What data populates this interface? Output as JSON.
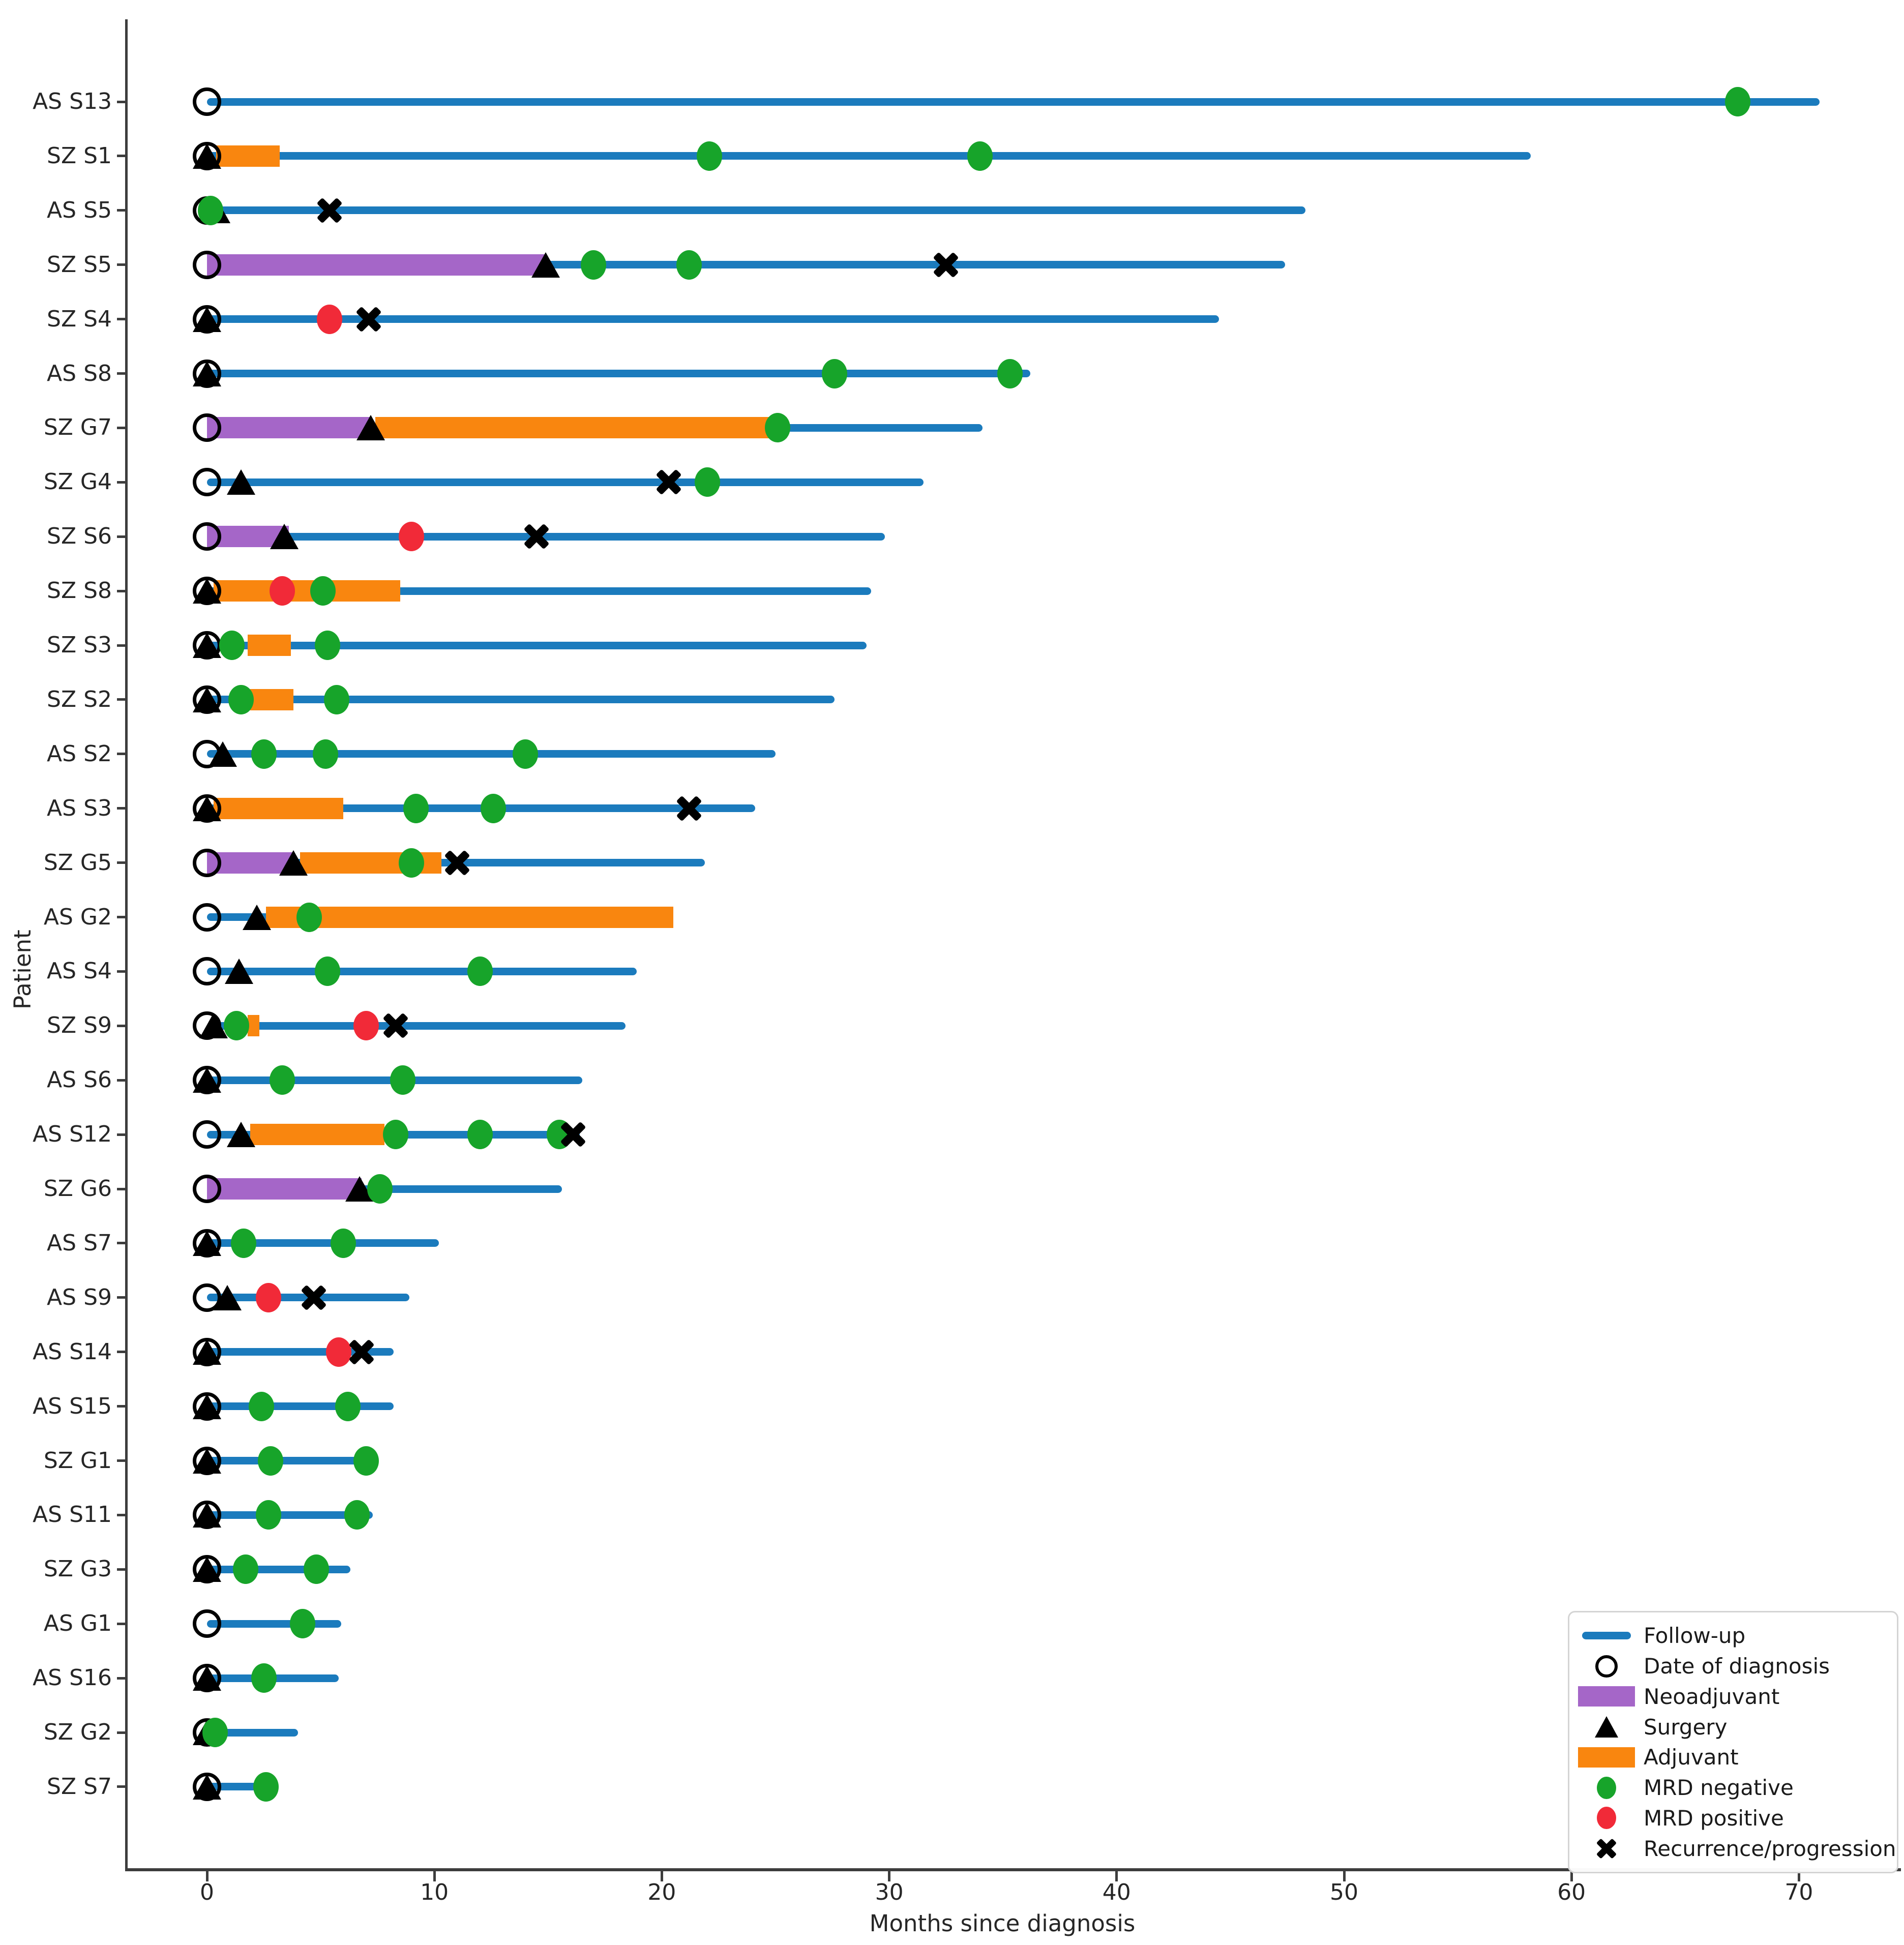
{
  "figure": {
    "xlabel": "Months since diagnosis",
    "ylabel": "Patient"
  },
  "colors": {
    "follow_up": "#1b7bbd",
    "neoadjuvant": "#a566c8",
    "adjuvant": "#f9860f",
    "mrd_negative": "#17a42a",
    "mrd_positive": "#f12a38",
    "marker_black": "#000000",
    "axis": "#3d3d3d",
    "text": "#262626"
  },
  "legend": {
    "items": [
      {
        "label": "Follow-up",
        "type": "follow_up"
      },
      {
        "label": "Date of diagnosis",
        "type": "diagnosis"
      },
      {
        "label": "Neoadjuvant",
        "type": "neoadjuvant"
      },
      {
        "label": "Surgery",
        "type": "surgery"
      },
      {
        "label": "Adjuvant",
        "type": "adjuvant"
      },
      {
        "label": "MRD negative",
        "type": "mrd_negative"
      },
      {
        "label": "MRD positive",
        "type": "mrd_positive"
      },
      {
        "label": "Recurrence/progression",
        "type": "recurrence"
      }
    ]
  },
  "chart_data": {
    "type": "swimmer",
    "title": "",
    "xlabel": "Months since diagnosis",
    "ylabel": "Patient",
    "x_ticks": [
      0,
      10,
      20,
      30,
      40,
      50,
      60,
      70
    ],
    "xlim": [
      -3.5,
      74.5
    ],
    "grid": false,
    "legend_position": "lower right",
    "patients": [
      {
        "id": "AS S13",
        "diagnosis": 0,
        "follow_up": 70.9,
        "surgery": null,
        "neoadjuvant": null,
        "adjuvant": null,
        "events": [
          {
            "type": "mrd_negative",
            "month": 67.3
          }
        ]
      },
      {
        "id": "SZ S1",
        "diagnosis": 0,
        "follow_up": 58.2,
        "surgery": 0,
        "neoadjuvant": null,
        "adjuvant": [
          0.4,
          3.2
        ],
        "events": [
          {
            "type": "mrd_negative",
            "month": 22.1
          },
          {
            "type": "mrd_negative",
            "month": 34.0
          }
        ]
      },
      {
        "id": "AS S5",
        "diagnosis": 0,
        "follow_up": 48.3,
        "surgery": 0.4,
        "neoadjuvant": null,
        "adjuvant": null,
        "events": [
          {
            "type": "mrd_negative",
            "month": 0.15
          },
          {
            "type": "recurrence",
            "month": 5.4
          }
        ]
      },
      {
        "id": "SZ S5",
        "diagnosis": 0,
        "follow_up": 47.4,
        "surgery": 14.9,
        "neoadjuvant": [
          0,
          14.9
        ],
        "adjuvant": null,
        "events": [
          {
            "type": "mrd_negative",
            "month": 17.0
          },
          {
            "type": "mrd_negative",
            "month": 21.2
          },
          {
            "type": "recurrence",
            "month": 32.5
          }
        ]
      },
      {
        "id": "SZ S4",
        "diagnosis": 0,
        "follow_up": 44.5,
        "surgery": 0,
        "neoadjuvant": null,
        "adjuvant": null,
        "events": [
          {
            "type": "mrd_positive",
            "month": 5.4
          },
          {
            "type": "recurrence",
            "month": 7.1
          }
        ]
      },
      {
        "id": "AS S8",
        "diagnosis": 0,
        "follow_up": 36.2,
        "surgery": 0,
        "neoadjuvant": null,
        "adjuvant": null,
        "events": [
          {
            "type": "mrd_negative",
            "month": 27.6
          },
          {
            "type": "mrd_negative",
            "month": 35.3
          }
        ]
      },
      {
        "id": "SZ G7",
        "diagnosis": 0,
        "follow_up": 34.1,
        "surgery": 7.2,
        "neoadjuvant": [
          0,
          7.2
        ],
        "adjuvant": [
          7.4,
          25.5
        ],
        "events": [
          {
            "type": "mrd_negative",
            "month": 25.1
          }
        ]
      },
      {
        "id": "SZ G4",
        "diagnosis": 0,
        "follow_up": 31.5,
        "surgery": 1.5,
        "neoadjuvant": null,
        "adjuvant": null,
        "events": [
          {
            "type": "recurrence",
            "month": 20.3
          },
          {
            "type": "mrd_negative",
            "month": 22.0
          }
        ]
      },
      {
        "id": "SZ S6",
        "diagnosis": 0,
        "follow_up": 29.8,
        "surgery": 3.4,
        "neoadjuvant": [
          0,
          3.6
        ],
        "adjuvant": null,
        "events": [
          {
            "type": "mrd_positive",
            "month": 9.0
          },
          {
            "type": "recurrence",
            "month": 14.5
          }
        ]
      },
      {
        "id": "SZ S8",
        "diagnosis": 0,
        "follow_up": 29.2,
        "surgery": 0,
        "neoadjuvant": null,
        "adjuvant": [
          0.3,
          8.5
        ],
        "events": [
          {
            "type": "mrd_positive",
            "month": 3.3
          },
          {
            "type": "mrd_negative",
            "month": 5.1
          }
        ]
      },
      {
        "id": "SZ S3",
        "diagnosis": 0,
        "follow_up": 29.0,
        "surgery": 0,
        "neoadjuvant": null,
        "adjuvant": [
          1.8,
          3.7
        ],
        "events": [
          {
            "type": "mrd_negative",
            "month": 1.1
          },
          {
            "type": "mrd_negative",
            "month": 5.3
          }
        ]
      },
      {
        "id": "SZ S2",
        "diagnosis": 0,
        "follow_up": 27.6,
        "surgery": 0,
        "neoadjuvant": null,
        "adjuvant": [
          1.9,
          3.8
        ],
        "events": [
          {
            "type": "mrd_negative",
            "month": 1.5
          },
          {
            "type": "mrd_negative",
            "month": 5.7
          }
        ]
      },
      {
        "id": "AS S2",
        "diagnosis": 0,
        "follow_up": 25.0,
        "surgery": 0.7,
        "neoadjuvant": null,
        "adjuvant": null,
        "events": [
          {
            "type": "mrd_negative",
            "month": 2.5
          },
          {
            "type": "mrd_negative",
            "month": 5.2
          },
          {
            "type": "mrd_negative",
            "month": 14.0
          }
        ]
      },
      {
        "id": "AS S3",
        "diagnosis": 0,
        "follow_up": 24.1,
        "surgery": 0,
        "neoadjuvant": null,
        "adjuvant": [
          0.3,
          6.0
        ],
        "events": [
          {
            "type": "mrd_negative",
            "month": 9.2
          },
          {
            "type": "mrd_negative",
            "month": 12.6
          },
          {
            "type": "recurrence",
            "month": 21.2
          }
        ]
      },
      {
        "id": "SZ G5",
        "diagnosis": 0,
        "follow_up": 21.9,
        "surgery": 3.8,
        "neoadjuvant": [
          0,
          3.8
        ],
        "adjuvant": [
          4.1,
          10.3
        ],
        "events": [
          {
            "type": "mrd_negative",
            "month": 9.0
          },
          {
            "type": "recurrence",
            "month": 11.0
          }
        ]
      },
      {
        "id": "AS G2",
        "diagnosis": 0,
        "follow_up": 20.5,
        "surgery": 2.2,
        "neoadjuvant": null,
        "adjuvant": [
          2.6,
          20.5
        ],
        "events": [
          {
            "type": "mrd_negative",
            "month": 4.5
          }
        ]
      },
      {
        "id": "AS S4",
        "diagnosis": 0,
        "follow_up": 18.9,
        "surgery": 1.4,
        "neoadjuvant": null,
        "adjuvant": null,
        "events": [
          {
            "type": "mrd_negative",
            "month": 5.3
          },
          {
            "type": "mrd_negative",
            "month": 12.0
          }
        ]
      },
      {
        "id": "SZ S9",
        "diagnosis": 0,
        "follow_up": 18.4,
        "surgery": 0.3,
        "neoadjuvant": null,
        "adjuvant": [
          1.8,
          2.3
        ],
        "events": [
          {
            "type": "mrd_negative",
            "month": 1.3
          },
          {
            "type": "mrd_positive",
            "month": 7.0
          },
          {
            "type": "recurrence",
            "month": 8.3
          }
        ]
      },
      {
        "id": "AS S6",
        "diagnosis": 0,
        "follow_up": 16.5,
        "surgery": 0,
        "neoadjuvant": null,
        "adjuvant": null,
        "events": [
          {
            "type": "mrd_negative",
            "month": 3.3
          },
          {
            "type": "mrd_negative",
            "month": 8.6
          }
        ]
      },
      {
        "id": "AS S12",
        "diagnosis": 0,
        "follow_up": 16.4,
        "surgery": 1.5,
        "neoadjuvant": null,
        "adjuvant": [
          1.9,
          7.8
        ],
        "events": [
          {
            "type": "mrd_negative",
            "month": 8.3
          },
          {
            "type": "mrd_negative",
            "month": 12.0
          },
          {
            "type": "mrd_negative",
            "month": 15.5
          },
          {
            "type": "recurrence",
            "month": 16.1
          }
        ]
      },
      {
        "id": "SZ G6",
        "diagnosis": 0,
        "follow_up": 15.6,
        "surgery": 6.7,
        "neoadjuvant": [
          0,
          6.8
        ],
        "adjuvant": null,
        "events": [
          {
            "type": "mrd_negative",
            "month": 7.6
          }
        ]
      },
      {
        "id": "AS S7",
        "diagnosis": 0,
        "follow_up": 10.2,
        "surgery": 0,
        "neoadjuvant": null,
        "adjuvant": null,
        "events": [
          {
            "type": "mrd_negative",
            "month": 1.6
          },
          {
            "type": "mrd_negative",
            "month": 6.0
          }
        ]
      },
      {
        "id": "AS S9",
        "diagnosis": 0,
        "follow_up": 8.9,
        "surgery": 0.9,
        "neoadjuvant": null,
        "adjuvant": null,
        "events": [
          {
            "type": "mrd_positive",
            "month": 2.7
          },
          {
            "type": "recurrence",
            "month": 4.7
          }
        ]
      },
      {
        "id": "AS S14",
        "diagnosis": 0,
        "follow_up": 8.2,
        "surgery": 0,
        "neoadjuvant": null,
        "adjuvant": null,
        "events": [
          {
            "type": "mrd_positive",
            "month": 5.8
          },
          {
            "type": "recurrence",
            "month": 6.8
          }
        ]
      },
      {
        "id": "AS S15",
        "diagnosis": 0,
        "follow_up": 8.2,
        "surgery": 0,
        "neoadjuvant": null,
        "adjuvant": null,
        "events": [
          {
            "type": "mrd_negative",
            "month": 2.4
          },
          {
            "type": "mrd_negative",
            "month": 6.2
          }
        ]
      },
      {
        "id": "SZ G1",
        "diagnosis": 0,
        "follow_up": 7.4,
        "surgery": 0,
        "neoadjuvant": null,
        "adjuvant": null,
        "events": [
          {
            "type": "mrd_negative",
            "month": 2.8
          },
          {
            "type": "mrd_negative",
            "month": 7.0
          }
        ]
      },
      {
        "id": "AS S11",
        "diagnosis": 0,
        "follow_up": 7.3,
        "surgery": 0,
        "neoadjuvant": null,
        "adjuvant": null,
        "events": [
          {
            "type": "mrd_negative",
            "month": 2.7
          },
          {
            "type": "mrd_negative",
            "month": 6.6
          }
        ]
      },
      {
        "id": "SZ G3",
        "diagnosis": 0,
        "follow_up": 6.3,
        "surgery": 0,
        "neoadjuvant": null,
        "adjuvant": null,
        "events": [
          {
            "type": "mrd_negative",
            "month": 1.7
          },
          {
            "type": "mrd_negative",
            "month": 4.8
          }
        ]
      },
      {
        "id": "AS G1",
        "diagnosis": 0,
        "follow_up": 5.9,
        "surgery": null,
        "neoadjuvant": null,
        "adjuvant": null,
        "events": [
          {
            "type": "mrd_negative",
            "month": 4.2
          }
        ]
      },
      {
        "id": "AS S16",
        "diagnosis": 0,
        "follow_up": 5.8,
        "surgery": 0,
        "neoadjuvant": null,
        "adjuvant": null,
        "events": [
          {
            "type": "mrd_negative",
            "month": 2.5
          }
        ]
      },
      {
        "id": "SZ G2",
        "diagnosis": 0,
        "follow_up": 4.0,
        "surgery": 0,
        "neoadjuvant": null,
        "adjuvant": null,
        "events": [
          {
            "type": "mrd_negative",
            "month": 0.35
          }
        ]
      },
      {
        "id": "SZ S7",
        "diagnosis": 0,
        "follow_up": 2.2,
        "surgery": 0,
        "neoadjuvant": null,
        "adjuvant": null,
        "events": [
          {
            "type": "mrd_negative",
            "month": 2.6
          }
        ]
      }
    ]
  }
}
